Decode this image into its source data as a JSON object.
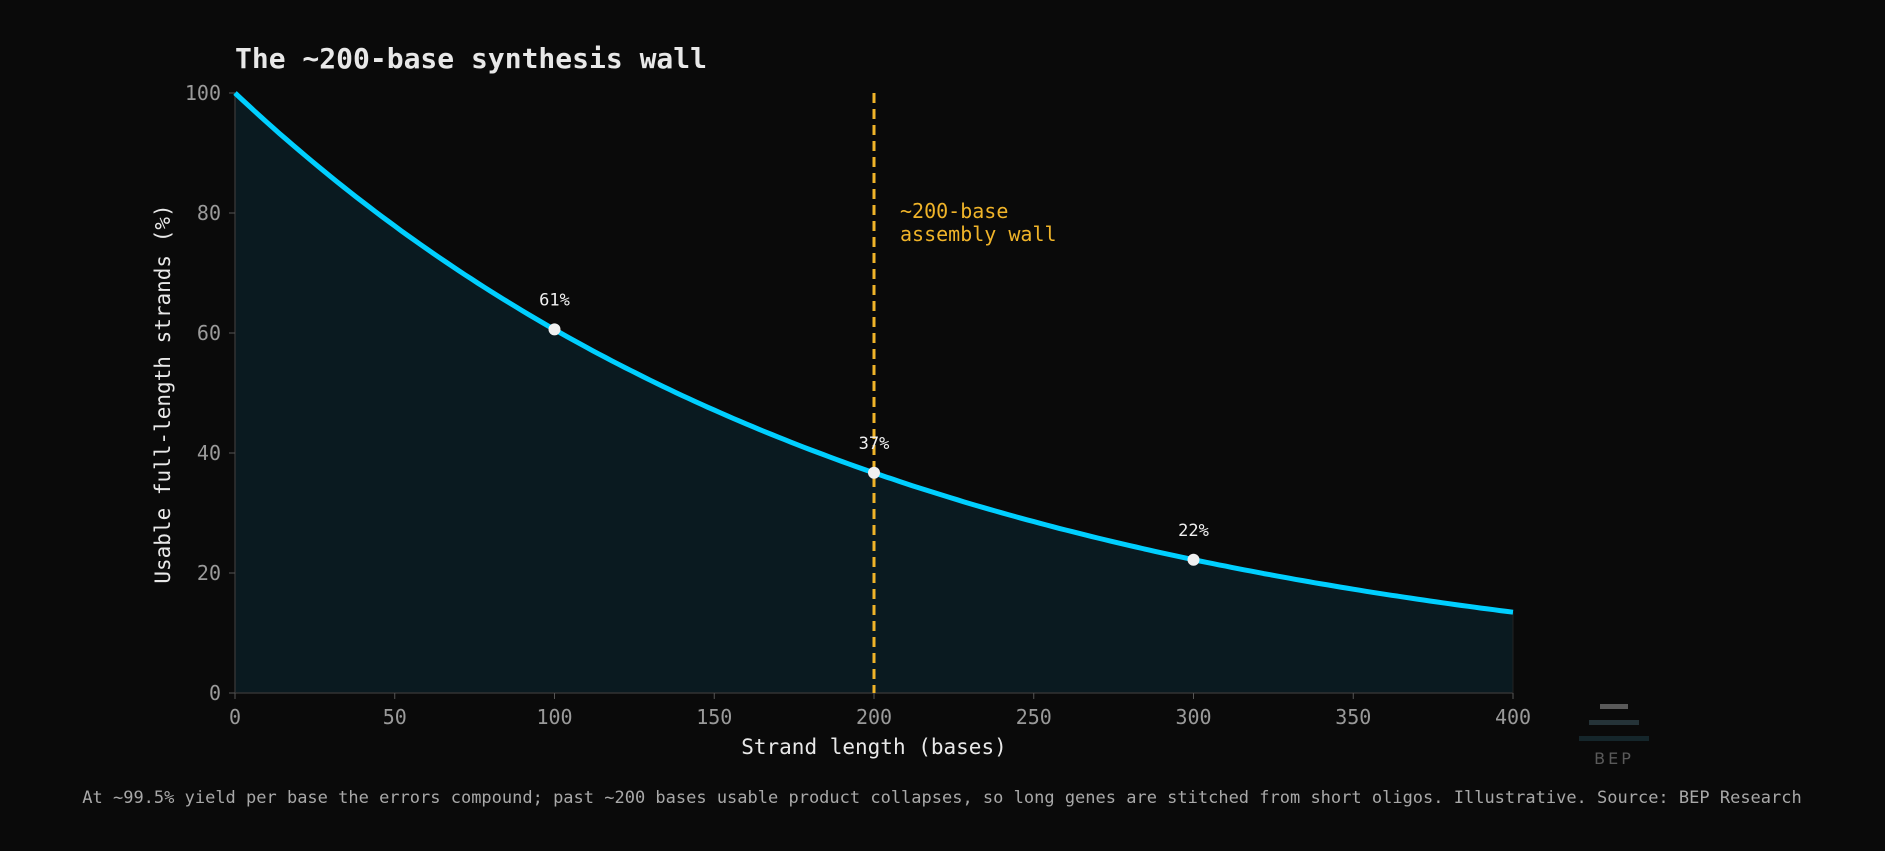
{
  "chart_data": {
    "type": "area",
    "title": "The ~200-base synthesis wall",
    "xlabel": "Strand length (bases)",
    "ylabel": "Usable full-length strands (%)",
    "xlim": [
      0,
      400
    ],
    "ylim": [
      0,
      100
    ],
    "x_ticks": [
      "0",
      "50",
      "100",
      "150",
      "200",
      "250",
      "300",
      "350",
      "400"
    ],
    "y_ticks": [
      "0",
      "20",
      "40",
      "60",
      "80",
      "100"
    ],
    "grid": false,
    "per_base_yield": 0.995,
    "series": [
      {
        "x": [
          0,
          25,
          50,
          75,
          100,
          125,
          150,
          175,
          200,
          225,
          250,
          275,
          300,
          325,
          350,
          375,
          400
        ],
        "values": [
          100,
          88.2,
          77.8,
          68.7,
          60.6,
          53.5,
          47.1,
          41.6,
          36.7,
          32.4,
          28.5,
          25.2,
          22.2,
          19.6,
          17.3,
          15.3,
          13.5
        ]
      }
    ],
    "highlighted_points": [
      {
        "x": 100,
        "y": 60.6,
        "label": "61%"
      },
      {
        "x": 200,
        "y": 36.7,
        "label": "37%"
      },
      {
        "x": 300,
        "y": 22.2,
        "label": "22%"
      }
    ],
    "vline": {
      "x": 200,
      "label_lines": [
        "~200-base",
        "assembly wall"
      ]
    },
    "footnote": "At ~99.5% yield per base the errors compound; past ~200 bases usable product collapses, so long genes are stitched from short oligos. Illustrative.  Source: BEP Research",
    "colors": {
      "line": "#00cfff",
      "fill": "#0a1a20",
      "vline": "#f0b429",
      "point": "#f0f0f0",
      "background": "#0a0a0a"
    }
  },
  "logo": {
    "text": "BEP"
  }
}
